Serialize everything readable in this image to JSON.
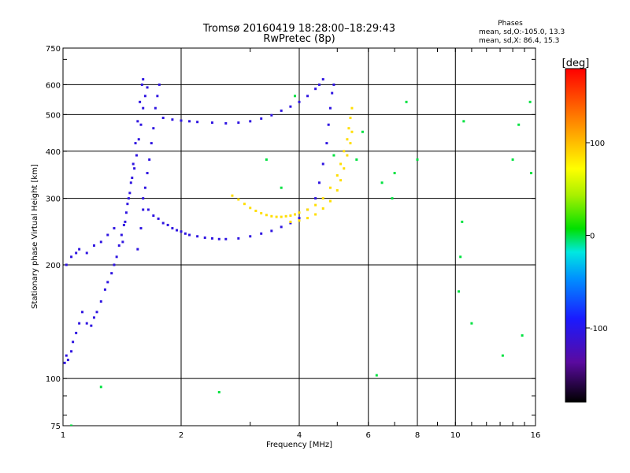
{
  "chart_data": {
    "type": "scatter",
    "title": "Tromsø 20160419 18:28:00–18:29:43",
    "subtitle": "RwPretec (8p)",
    "xlabel": "Frequency [MHz]",
    "ylabel": "Stationary phase Virtual Height [km]",
    "x_scale": "log",
    "y_scale": "log",
    "xlim": [
      1,
      16
    ],
    "ylim": [
      75,
      750
    ],
    "x_ticks": [
      1,
      2,
      4,
      6,
      8,
      10,
      16
    ],
    "x_tick_labels": [
      "1",
      "2",
      "4",
      "6",
      "8",
      "10",
      "16"
    ],
    "y_ticks": [
      75,
      100,
      200,
      300,
      400,
      500,
      600,
      750
    ],
    "y_tick_labels": [
      "75",
      "100",
      "200",
      "300",
      "400",
      "500",
      "600",
      "750"
    ],
    "grid": true,
    "stats": {
      "header": "Phases",
      "line_o": "mean, sd,O:-105.0, 13.3",
      "line_x": "mean, sd,X:  86.4, 15.3"
    },
    "colorbar": {
      "label": "[deg]",
      "range": [
        -180,
        180
      ],
      "ticks": [
        100,
        0,
        -100
      ],
      "tick_labels": [
        "100",
        "0",
        "-100"
      ]
    },
    "series": [
      {
        "mode": "O",
        "phase": -105,
        "points": [
          [
            1.01,
            110
          ],
          [
            1.02,
            115
          ],
          [
            1.03,
            112
          ],
          [
            1.05,
            118
          ],
          [
            1.06,
            125
          ],
          [
            1.08,
            132
          ],
          [
            1.1,
            140
          ],
          [
            1.12,
            150
          ],
          [
            1.15,
            140
          ],
          [
            1.18,
            138
          ],
          [
            1.2,
            145
          ],
          [
            1.22,
            150
          ],
          [
            1.25,
            160
          ],
          [
            1.28,
            172
          ],
          [
            1.3,
            180
          ],
          [
            1.33,
            190
          ],
          [
            1.35,
            200
          ],
          [
            1.37,
            210
          ],
          [
            1.39,
            225
          ],
          [
            1.41,
            240
          ],
          [
            1.43,
            255
          ],
          [
            1.45,
            275
          ],
          [
            1.47,
            300
          ],
          [
            1.49,
            330
          ],
          [
            1.51,
            370
          ],
          [
            1.53,
            420
          ],
          [
            1.55,
            480
          ],
          [
            1.57,
            540
          ],
          [
            1.59,
            600
          ],
          [
            1.6,
            620
          ],
          [
            1.02,
            200
          ],
          [
            1.05,
            210
          ],
          [
            1.08,
            215
          ],
          [
            1.1,
            220
          ],
          [
            1.15,
            215
          ],
          [
            1.2,
            225
          ],
          [
            1.25,
            230
          ],
          [
            1.3,
            240
          ],
          [
            1.35,
            250
          ],
          [
            1.42,
            230
          ],
          [
            1.44,
            260
          ],
          [
            1.46,
            290
          ],
          [
            1.48,
            310
          ],
          [
            1.5,
            340
          ],
          [
            1.52,
            360
          ],
          [
            1.54,
            390
          ],
          [
            1.56,
            430
          ],
          [
            1.58,
            470
          ],
          [
            1.6,
            520
          ],
          [
            1.62,
            560
          ],
          [
            1.64,
            590
          ],
          [
            1.55,
            220
          ],
          [
            1.58,
            250
          ],
          [
            1.6,
            280
          ],
          [
            1.62,
            320
          ],
          [
            1.64,
            350
          ],
          [
            1.66,
            380
          ],
          [
            1.68,
            420
          ],
          [
            1.7,
            460
          ],
          [
            1.72,
            520
          ],
          [
            1.74,
            560
          ],
          [
            1.76,
            600
          ],
          [
            1.6,
            300
          ],
          [
            1.65,
            280
          ],
          [
            1.7,
            270
          ],
          [
            1.75,
            265
          ],
          [
            1.8,
            258
          ],
          [
            1.85,
            255
          ],
          [
            1.9,
            250
          ],
          [
            1.95,
            247
          ],
          [
            2.0,
            245
          ],
          [
            2.05,
            242
          ],
          [
            2.1,
            240
          ],
          [
            2.2,
            238
          ],
          [
            2.3,
            236
          ],
          [
            2.4,
            235
          ],
          [
            2.5,
            234
          ],
          [
            2.6,
            234
          ],
          [
            2.8,
            235
          ],
          [
            3.0,
            238
          ],
          [
            3.2,
            242
          ],
          [
            3.4,
            246
          ],
          [
            3.6,
            252
          ],
          [
            3.8,
            258
          ],
          [
            4.0,
            266
          ],
          [
            4.2,
            280
          ],
          [
            4.4,
            300
          ],
          [
            4.5,
            330
          ],
          [
            4.6,
            370
          ],
          [
            4.7,
            420
          ],
          [
            4.75,
            470
          ],
          [
            4.8,
            520
          ],
          [
            4.85,
            570
          ],
          [
            4.9,
            600
          ],
          [
            1.8,
            490
          ],
          [
            1.9,
            485
          ],
          [
            2.0,
            482
          ],
          [
            2.1,
            480
          ],
          [
            2.2,
            478
          ],
          [
            2.4,
            476
          ],
          [
            2.6,
            474
          ],
          [
            2.8,
            476
          ],
          [
            3.0,
            480
          ],
          [
            3.2,
            488
          ],
          [
            3.4,
            498
          ],
          [
            3.6,
            512
          ],
          [
            3.8,
            525
          ],
          [
            4.0,
            540
          ],
          [
            4.2,
            560
          ],
          [
            4.4,
            585
          ],
          [
            4.5,
            600
          ],
          [
            4.6,
            620
          ]
        ]
      },
      {
        "mode": "X",
        "phase": 86,
        "points": [
          [
            2.7,
            305
          ],
          [
            2.8,
            298
          ],
          [
            2.9,
            290
          ],
          [
            3.0,
            283
          ],
          [
            3.1,
            278
          ],
          [
            3.2,
            274
          ],
          [
            3.3,
            271
          ],
          [
            3.4,
            269
          ],
          [
            3.5,
            268
          ],
          [
            3.6,
            268
          ],
          [
            3.7,
            269
          ],
          [
            3.8,
            270
          ],
          [
            3.9,
            272
          ],
          [
            4.0,
            275
          ],
          [
            4.2,
            280
          ],
          [
            4.4,
            288
          ],
          [
            4.6,
            300
          ],
          [
            4.8,
            320
          ],
          [
            5.0,
            345
          ],
          [
            5.1,
            370
          ],
          [
            5.2,
            400
          ],
          [
            5.3,
            430
          ],
          [
            5.35,
            460
          ],
          [
            5.4,
            490
          ],
          [
            5.45,
            520
          ],
          [
            3.8,
            260
          ],
          [
            4.0,
            262
          ],
          [
            4.2,
            266
          ],
          [
            4.4,
            272
          ],
          [
            4.6,
            282
          ],
          [
            4.8,
            295
          ],
          [
            5.0,
            315
          ],
          [
            5.1,
            335
          ],
          [
            5.2,
            360
          ],
          [
            5.3,
            390
          ],
          [
            5.4,
            420
          ],
          [
            5.45,
            450
          ]
        ]
      },
      {
        "mode": "scattered",
        "phase": 0,
        "points": [
          [
            2.5,
            92
          ],
          [
            6.3,
            102
          ],
          [
            10.2,
            170
          ],
          [
            10.3,
            210
          ],
          [
            14.0,
            380
          ],
          [
            15.5,
            540
          ],
          [
            15.6,
            350
          ],
          [
            14.8,
            130
          ],
          [
            10.5,
            480
          ],
          [
            7.0,
            350
          ],
          [
            6.5,
            330
          ],
          [
            6.9,
            300
          ],
          [
            7.5,
            540
          ],
          [
            8.0,
            380
          ],
          [
            3.3,
            380
          ],
          [
            3.6,
            320
          ],
          [
            3.9,
            560
          ],
          [
            5.8,
            450
          ],
          [
            5.6,
            380
          ],
          [
            4.9,
            390
          ],
          [
            1.05,
            75
          ],
          [
            1.25,
            95
          ],
          [
            10.4,
            260
          ],
          [
            11.0,
            140
          ],
          [
            13.2,
            115
          ],
          [
            14.5,
            470
          ]
        ]
      }
    ]
  }
}
